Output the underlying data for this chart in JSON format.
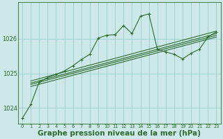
{
  "bg_color": "#cce8e8",
  "grid_color": "#99cccc",
  "line_color": "#2d6b2d",
  "xlabel": "Graphe pression niveau de la mer (hPa)",
  "xlabel_fontsize": 7.5,
  "xtick_labels": [
    "0",
    "1",
    "2",
    "3",
    "4",
    "5",
    "6",
    "7",
    "8",
    "9",
    "10",
    "11",
    "12",
    "13",
    "14",
    "15",
    "16",
    "17",
    "18",
    "19",
    "20",
    "21",
    "22",
    "23"
  ],
  "yticks": [
    1024,
    1025,
    1026
  ],
  "ylim": [
    1023.55,
    1027.05
  ],
  "xlim": [
    -0.5,
    23.5
  ],
  "series1_x": [
    0,
    1,
    2,
    3,
    4,
    5,
    6,
    7,
    8,
    9,
    10,
    11,
    12,
    13,
    14,
    15,
    16,
    17,
    18,
    19,
    20,
    21,
    22,
    23
  ],
  "series1_y": [
    1023.7,
    1024.1,
    1024.75,
    1024.88,
    1024.97,
    1025.07,
    1025.22,
    1025.4,
    1025.55,
    1026.02,
    1026.1,
    1026.12,
    1026.38,
    1026.15,
    1026.65,
    1026.72,
    1025.7,
    1025.62,
    1025.55,
    1025.42,
    1025.58,
    1025.7,
    1026.05,
    1026.2
  ],
  "series2_x": [
    1,
    23
  ],
  "series2_y": [
    1024.78,
    1026.22
  ],
  "series3_x": [
    1,
    23
  ],
  "series3_y": [
    1024.72,
    1026.15
  ],
  "series4_x": [
    1,
    23
  ],
  "series4_y": [
    1024.68,
    1026.1
  ],
  "series5_x": [
    1,
    23
  ],
  "series5_y": [
    1024.62,
    1026.05
  ]
}
